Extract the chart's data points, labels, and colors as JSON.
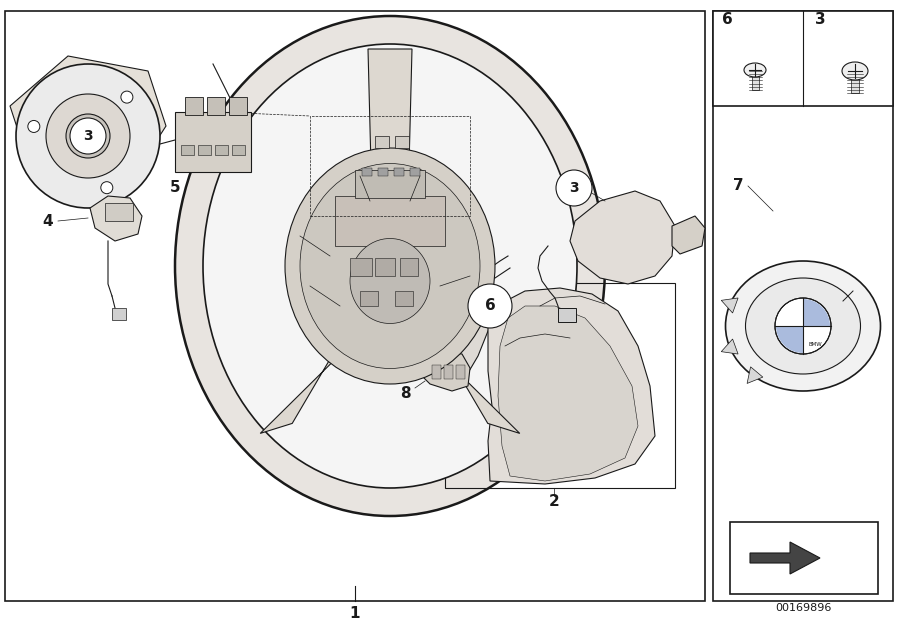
{
  "bg_color": "#ffffff",
  "text_color": "#000000",
  "part_number": "00169896",
  "line_color": "#1a1a1a",
  "gray_light": "#e8e8e8",
  "gray_mid": "#cccccc",
  "gray_dark": "#aaaaaa",
  "gray_fill": "#d8d8d8"
}
